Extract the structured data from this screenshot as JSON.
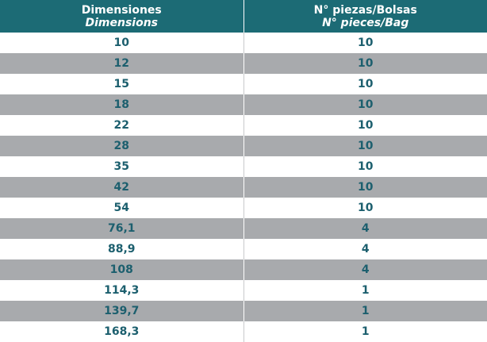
{
  "table": {
    "header": [
      {
        "title": "Dimensiones",
        "subtitle": "Dimensions"
      },
      {
        "title": "N° piezas/Bolsas",
        "subtitle": "N° pieces/Bag"
      }
    ],
    "rows": [
      [
        "10",
        "10"
      ],
      [
        "12",
        "10"
      ],
      [
        "15",
        "10"
      ],
      [
        "18",
        "10"
      ],
      [
        "22",
        "10"
      ],
      [
        "28",
        "10"
      ],
      [
        "35",
        "10"
      ],
      [
        "42",
        "10"
      ],
      [
        "54",
        "10"
      ],
      [
        "76,1",
        "4"
      ],
      [
        "88,9",
        "4"
      ],
      [
        "108",
        "4"
      ],
      [
        "114,3",
        "1"
      ],
      [
        "139,7",
        "1"
      ],
      [
        "168,3",
        "1"
      ]
    ]
  }
}
